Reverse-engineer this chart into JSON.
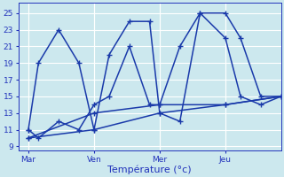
{
  "xlabel": "Température (°c)",
  "bg_color": "#cce8ee",
  "grid_color": "#ffffff",
  "line_color": "#1a3aaa",
  "ylim": [
    8.5,
    26.2
  ],
  "yticks": [
    9,
    11,
    13,
    15,
    17,
    19,
    21,
    23,
    25
  ],
  "xtick_labels": [
    "Mar",
    "Ven",
    "Mer",
    "Jeu"
  ],
  "n_points": 13,
  "xtick_positions": [
    0,
    3.25,
    6.5,
    9.75
  ],
  "xlim": [
    -0.5,
    12.5
  ],
  "lines": [
    {
      "x": [
        0,
        0.5,
        1.5,
        2.5,
        3.25,
        4.0,
        5.0,
        6.0,
        6.5,
        7.5,
        8.5,
        9.75,
        10.5,
        11.5,
        12.5
      ],
      "y": [
        11,
        19,
        23,
        19,
        11,
        20,
        24,
        24,
        13,
        12,
        25,
        25,
        22,
        15,
        15
      ]
    },
    {
      "x": [
        0,
        0.5,
        1.5,
        2.5,
        3.25,
        4.0,
        5.0,
        6.0,
        6.5,
        7.5,
        8.5,
        9.75,
        10.5,
        11.5,
        12.5
      ],
      "y": [
        11,
        10,
        12,
        11,
        14,
        15,
        21,
        14,
        14,
        21,
        25,
        22,
        15,
        14,
        15
      ]
    },
    {
      "x": [
        0,
        3.25,
        6.5,
        9.75,
        12.5
      ],
      "y": [
        10,
        13,
        14,
        14,
        15
      ]
    },
    {
      "x": [
        0,
        3.25,
        6.5,
        9.75,
        12.5
      ],
      "y": [
        10,
        11,
        13,
        14,
        15
      ]
    }
  ]
}
